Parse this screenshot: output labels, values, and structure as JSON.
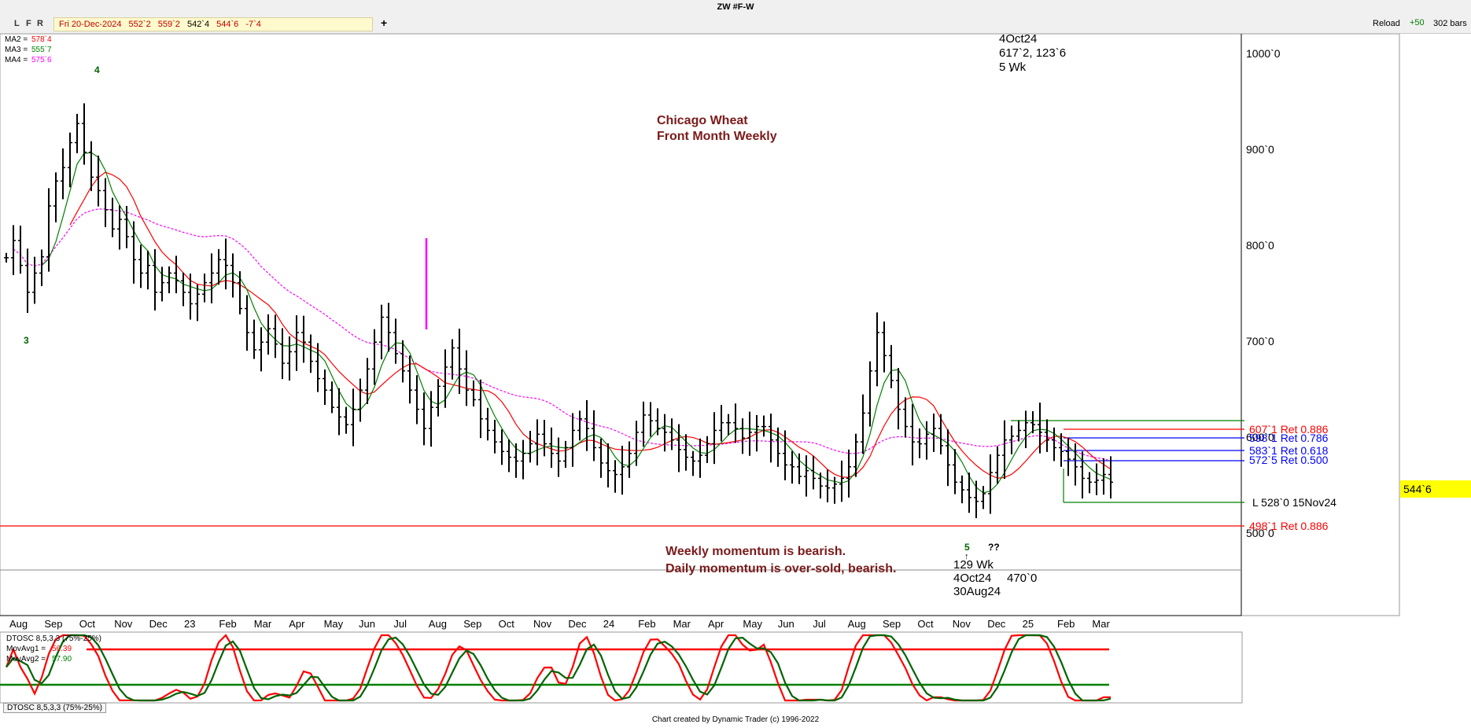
{
  "window": {
    "title": "ZW #F-W"
  },
  "toolbar": {
    "l_label": "L",
    "f_label": "F",
    "r_label": "R",
    "info": {
      "date": "Fri 20-Dec-2024",
      "open": "552`2",
      "high": "559`2",
      "low": "542`4",
      "close": "544`6",
      "change": "-7`4"
    },
    "plus_label": "+",
    "reload_label": "Reload",
    "plus_label_2": "+50",
    "bars_label": "302 bars"
  },
  "legend": {
    "ma2": {
      "label": "MA2 =",
      "value": "578`4",
      "color": "#ff0000"
    },
    "ma3": {
      "label": "MA3 =",
      "value": "555`7",
      "color": "#008000"
    },
    "ma4": {
      "label": "MA4 =",
      "value": "575`6",
      "color": "#ff00ff"
    }
  },
  "annotations": {
    "title_line1": "Chicago Wheat",
    "title_line2": "Front Month Weekly",
    "top_label": [
      "4Oct24",
      "617`2, 123`6",
      "5 Wk"
    ],
    "wave_3": "3",
    "wave_4": "4",
    "wave_5": "5",
    "qq": "??",
    "bottom_label": [
      "129 Wk",
      "4Oct24",
      "470`0",
      "30Aug24"
    ],
    "momentum1": "Weekly momentum is bearish.",
    "momentum2": "Daily momentum is over-sold, bearish.",
    "low_label": "L 528`0 15Nov24",
    "ret_886_high": "607`1 Ret 0.886",
    "ret_786": "598`1 Ret 0.786",
    "ret_618": "583`1 Ret 0.618",
    "ret_500": "572`5 Ret 0.500",
    "ret_886_low": "498`1 Ret 0.886"
  },
  "price_axis": {
    "ticks": [
      "1000`0",
      "900`0",
      "800`0",
      "700`0",
      "600`0",
      "500`0"
    ],
    "current": "544`6"
  },
  "oscillator": {
    "title": "DTOSC 8,5,3,3 (75%-25%)",
    "ma1_label": "MovAvg1 =",
    "ma1_value": "56.39",
    "ma2_label": "MovAvg2 =",
    "ma2_value": "57.90",
    "tab_label": "DTOSC 8,5,3,3 (75%-25%)"
  },
  "footer": "Chart created by Dynamic Trader  (c) 1996-2022",
  "chart_data": {
    "type": "bar",
    "subtype": "ohlc",
    "title": "ZW #F-W",
    "x_labels": [
      "Aug",
      "Sep",
      "Oct",
      "Nov",
      "Dec",
      "23",
      "Feb",
      "Mar",
      "Apr",
      "May",
      "Jun",
      "Jul",
      "Aug",
      "Sep",
      "Oct",
      "Nov",
      "Dec",
      "24",
      "Feb",
      "Mar",
      "Apr",
      "May",
      "Jun",
      "Jul",
      "Aug",
      "Sep",
      "Oct",
      "Nov",
      "Dec",
      "25",
      "Feb",
      "Mar"
    ],
    "ylim": [
      450,
      1010
    ],
    "y_ticks": [
      500,
      600,
      700,
      800,
      900,
      1000
    ],
    "closes": [
      778,
      796,
      770,
      742,
      762,
      779,
      832,
      858,
      872,
      898,
      918,
      888,
      862,
      848,
      828,
      808,
      818,
      800,
      776,
      762,
      770,
      742,
      752,
      762,
      754,
      742,
      730,
      740,
      752,
      762,
      776,
      770,
      752,
      725,
      700,
      682,
      690,
      704,
      688,
      668,
      680,
      700,
      690,
      670,
      652,
      640,
      622,
      612,
      604,
      620,
      640,
      662,
      690,
      716,
      700,
      678,
      660,
      640,
      620,
      600,
      622,
      644,
      664,
      684,
      662,
      640,
      630,
      610,
      598,
      586,
      576,
      570,
      566,
      574,
      584,
      594,
      584,
      574,
      566,
      580,
      598,
      610,
      600,
      580,
      564,
      556,
      552,
      560,
      574,
      596,
      614,
      608,
      600,
      596,
      588,
      578,
      570,
      566,
      572,
      584,
      598,
      606,
      606,
      600,
      590,
      596,
      602,
      602,
      588,
      574,
      562,
      560,
      550,
      556,
      548,
      540,
      538,
      542,
      548,
      560,
      586,
      616,
      660,
      700,
      676,
      650,
      620,
      602,
      586,
      584,
      594,
      600,
      582,
      562,
      544,
      536,
      528,
      524,
      532,
      554,
      572,
      588,
      592,
      598,
      606,
      604,
      596,
      588,
      580,
      576,
      568,
      560,
      548,
      544,
      546,
      552,
      544
    ]
  }
}
